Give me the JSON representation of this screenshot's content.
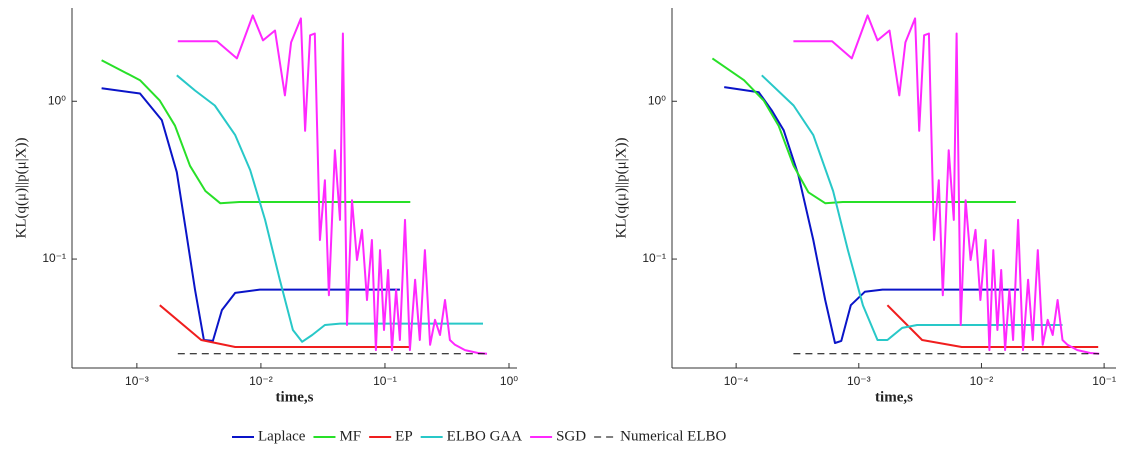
{
  "chart_data": [
    {
      "type": "line",
      "xlabel": "time,s",
      "ylabel": "KL(q(μ)||p(μ|X))",
      "log_x": true,
      "log_y": true,
      "xlim": [
        0.0003,
        1.16
      ],
      "ylim": [
        0.0204,
        3.9
      ],
      "xticks": [
        {
          "value": 0.001,
          "label": "10⁻³"
        },
        {
          "value": 0.01,
          "label": "10⁻²"
        },
        {
          "value": 0.1,
          "label": "10⁻¹"
        },
        {
          "value": 1,
          "label": "10⁰"
        }
      ],
      "yticks": [
        {
          "value": 0.1,
          "label": "10⁻¹"
        },
        {
          "value": 1,
          "label": "10⁰"
        }
      ],
      "series": [
        {
          "name": "Laplace",
          "color": "#0a14c8",
          "x": [
            0.00052,
            0.00106,
            0.00159,
            0.0021,
            0.00248,
            0.00294,
            0.00347,
            0.0041,
            0.00485,
            0.0062,
            0.0098,
            0.132
          ],
          "values": [
            1.21,
            1.12,
            0.76,
            0.355,
            0.153,
            0.064,
            0.0307,
            0.0303,
            0.0475,
            0.061,
            0.064,
            0.064
          ]
        },
        {
          "name": "MF",
          "color": "#28e028",
          "x": [
            0.00052,
            0.00106,
            0.00153,
            0.00203,
            0.00268,
            0.00357,
            0.0047,
            0.0067,
            0.16
          ],
          "values": [
            1.82,
            1.36,
            1.01,
            0.7,
            0.39,
            0.27,
            0.226,
            0.23,
            0.23
          ]
        },
        {
          "name": "EP",
          "color": "#f01e1e",
          "x": [
            0.00153,
            0.0033,
            0.0062,
            0.16
          ],
          "values": [
            0.051,
            0.0307,
            0.0277,
            0.0277
          ]
        },
        {
          "name": "ELBO GAA",
          "color": "#28c8c8",
          "x": [
            0.0021,
            0.00294,
            0.00425,
            0.0062,
            0.0082,
            0.0108,
            0.0142,
            0.0181,
            0.0215,
            0.0259,
            0.0328,
            0.0434,
            0.617
          ],
          "values": [
            1.46,
            1.17,
            0.94,
            0.61,
            0.366,
            0.177,
            0.074,
            0.0355,
            0.0299,
            0.033,
            0.0382,
            0.039,
            0.039
          ]
        },
        {
          "name": "SGD",
          "color": "#ff28ff",
          "x": [
            0.00214,
            0.00442,
            0.0064,
            0.0086,
            0.0104,
            0.013,
            0.0156,
            0.0175,
            0.021,
            0.0227,
            0.0249,
            0.0272,
            0.0299,
            0.0328,
            0.0353,
            0.0395,
            0.0434,
            0.0458,
            0.0494,
            0.0542,
            0.0595,
            0.0653,
            0.0716,
            0.0785,
            0.0845,
            0.0912,
            0.0982,
            0.106,
            0.114,
            0.123,
            0.132,
            0.145,
            0.159,
            0.175,
            0.191,
            0.21,
            0.231,
            0.253,
            0.278,
            0.305,
            0.334,
            0.367,
            0.442,
            0.562,
            0.665
          ],
          "values": [
            2.4,
            2.4,
            1.87,
            3.5,
            2.43,
            2.81,
            1.09,
            2.36,
            3.35,
            0.65,
            2.62,
            2.69,
            0.132,
            0.316,
            0.059,
            0.49,
            0.177,
            2.69,
            0.0382,
            0.236,
            0.0986,
            0.153,
            0.055,
            0.132,
            0.0265,
            0.114,
            0.0355,
            0.0852,
            0.0265,
            0.064,
            0.0307,
            0.177,
            0.0265,
            0.074,
            0.0307,
            0.114,
            0.0286,
            0.0412,
            0.033,
            0.055,
            0.0307,
            0.0286,
            0.0265,
            0.0254,
            0.0251
          ]
        },
        {
          "name": "Numerical ELBO",
          "color": "#000000",
          "dash": true,
          "x": [
            0.00214,
            0.665
          ],
          "values": [
            0.0251,
            0.0251
          ]
        }
      ]
    },
    {
      "type": "line",
      "xlabel": "time,s",
      "ylabel": "KL(q(μ)||p(μ|X))",
      "log_x": true,
      "log_y": true,
      "xlim": [
        3e-05,
        0.125
      ],
      "ylim": [
        0.0204,
        3.9
      ],
      "xticks": [
        {
          "value": 0.0001,
          "label": "10⁻⁴"
        },
        {
          "value": 0.001,
          "label": "10⁻³"
        },
        {
          "value": 0.01,
          "label": "10⁻²"
        },
        {
          "value": 0.1,
          "label": "10⁻¹"
        }
      ],
      "yticks": [
        {
          "value": 0.1,
          "label": "10⁻¹"
        },
        {
          "value": 1,
          "label": "10⁰"
        }
      ],
      "series": [
        {
          "color": "#0a14c8",
          "x": [
            8e-05,
            0.000153,
            0.000195,
            0.000244,
            0.000322,
            0.000426,
            0.000532,
            0.00064,
            0.00072,
            0.00086,
            0.00112,
            0.00156,
            0.0202
          ],
          "values": [
            1.23,
            1.14,
            0.877,
            0.655,
            0.34,
            0.132,
            0.055,
            0.0294,
            0.0303,
            0.051,
            0.062,
            0.064,
            0.064
          ]
        },
        {
          "color": "#28e028",
          "x": [
            6.4e-05,
            0.000116,
            0.000168,
            0.000222,
            0.000294,
            0.000388,
            0.000532,
            0.00074,
            0.0191
          ],
          "values": [
            1.87,
            1.36,
            1.01,
            0.7,
            0.39,
            0.265,
            0.226,
            0.23,
            0.23
          ]
        },
        {
          "color": "#f01e1e",
          "x": [
            0.00171,
            0.00328,
            0.0069,
            0.0895
          ],
          "values": [
            0.051,
            0.0307,
            0.0277,
            0.0277
          ]
        },
        {
          "color": "#28c8c8",
          "x": [
            0.000162,
            0.000294,
            0.000426,
            0.000617,
            0.000815,
            0.00108,
            0.00142,
            0.00171,
            0.00226,
            0.00299,
            0.0458
          ],
          "values": [
            1.46,
            0.94,
            0.61,
            0.27,
            0.114,
            0.051,
            0.0307,
            0.0307,
            0.0366,
            0.0382,
            0.0382
          ]
        },
        {
          "color": "#ff28ff",
          "x": [
            0.000293,
            0.000606,
            0.000877,
            0.00118,
            0.00142,
            0.00178,
            0.00214,
            0.0024,
            0.00288,
            0.00311,
            0.00341,
            0.00373,
            0.0041,
            0.00449,
            0.00484,
            0.00541,
            0.00595,
            0.00627,
            0.00677,
            0.00743,
            0.00815,
            0.00895,
            0.00981,
            0.0108,
            0.0116,
            0.0125,
            0.0135,
            0.0145,
            0.0156,
            0.0169,
            0.0181,
            0.0199,
            0.0218,
            0.024,
            0.0262,
            0.0288,
            0.0316,
            0.0347,
            0.0381,
            0.0418,
            0.0458,
            0.0503,
            0.0606,
            0.077,
            0.0911
          ],
          "values": [
            2.4,
            2.4,
            1.87,
            3.5,
            2.43,
            2.81,
            1.09,
            2.36,
            3.35,
            0.65,
            2.62,
            2.69,
            0.132,
            0.316,
            0.059,
            0.49,
            0.177,
            2.69,
            0.0382,
            0.236,
            0.0986,
            0.153,
            0.055,
            0.132,
            0.0265,
            0.114,
            0.0355,
            0.0852,
            0.0265,
            0.064,
            0.0307,
            0.177,
            0.0265,
            0.074,
            0.0307,
            0.114,
            0.0286,
            0.0412,
            0.033,
            0.055,
            0.0307,
            0.0286,
            0.0265,
            0.0254,
            0.0251
          ]
        },
        {
          "color": "#000000",
          "dash": true,
          "x": [
            0.000293,
            0.0911
          ],
          "values": [
            0.0251,
            0.0251
          ]
        }
      ]
    }
  ]
}
